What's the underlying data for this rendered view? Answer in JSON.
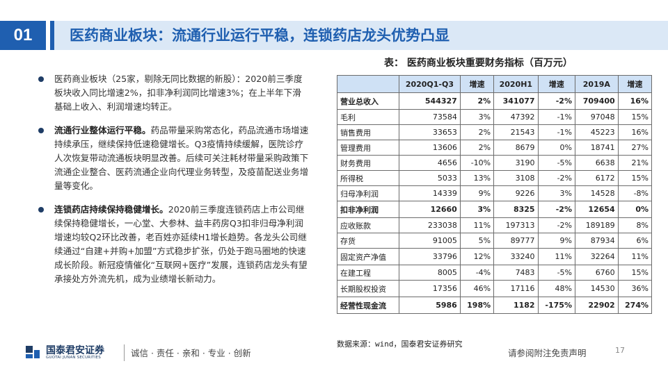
{
  "header": {
    "number": "01",
    "title": "医药商业板块：流通行业运行平稳，连锁药店龙头优势凸显"
  },
  "bullets": [
    {
      "bold": "",
      "text": "医药商业板块（25家，剔除无同比数据的新股）：2020前三季度板块收入同比增速2%，扣非净利润同比增速3%；在上半年下滑基础上收入、利润增速均转正。"
    },
    {
      "bold": "流通行业整体运行平稳。",
      "text": "药品带量采购常态化，药品流通市场增速持续承压，继续保持低速稳健增长。Q3疫情持续缓解，医院诊疗人次恢复带动流通板块明显改善。后续可关注耗材带量采购政策下流通企业整合、医药流通企业向代理业务转型，及疫苗配送业务增量等变化。"
    },
    {
      "bold": "连锁药店持续保持稳健增长。",
      "text": "2020前三季度连锁药店上市公司继续保持稳健增长，一心堂、大参林、益丰药房Q3扣非归母净利润增速均较Q2环比改善，老百姓亦延续H1增长趋势。各龙头公司继续通过“自建+并购+加盟”方式稳步扩张，仍处于跑马圈地的快速成长阶段。新冠疫情催化“互联网+医疗”发展，连锁药店龙头有望承接处方外流先机，成为业绩增长新动力。"
    }
  ],
  "table": {
    "title": "表：  医药商业板块重要财务指标（百万元）",
    "headers": [
      "",
      "2020Q1-Q3",
      "增速",
      "2020H1",
      "增速",
      "2019A",
      "增速"
    ],
    "rows": [
      {
        "label": "营业总收入",
        "bold": true,
        "cells": [
          "544327",
          "2%",
          "341077",
          "-2%",
          "709400",
          "16%"
        ]
      },
      {
        "label": "毛利",
        "bold": false,
        "cells": [
          "73584",
          "3%",
          "47392",
          "-1%",
          "97048",
          "15%"
        ]
      },
      {
        "label": "销售费用",
        "bold": false,
        "cells": [
          "33653",
          "2%",
          "21543",
          "-1%",
          "45223",
          "16%"
        ]
      },
      {
        "label": "管理费用",
        "bold": false,
        "cells": [
          "13606",
          "2%",
          "8679",
          "0%",
          "18741",
          "27%"
        ]
      },
      {
        "label": "财务费用",
        "bold": false,
        "cells": [
          "4656",
          "-10%",
          "3190",
          "-5%",
          "6638",
          "21%"
        ]
      },
      {
        "label": "所得税",
        "bold": false,
        "cells": [
          "5033",
          "13%",
          "3108",
          "-2%",
          "6172",
          "15%"
        ]
      },
      {
        "label": "归母净利润",
        "bold": false,
        "cells": [
          "14339",
          "9%",
          "9226",
          "3%",
          "14528",
          "-8%"
        ]
      },
      {
        "label": "扣非净利润",
        "bold": true,
        "cells": [
          "12660",
          "3%",
          "8325",
          "-2%",
          "12654",
          "0%"
        ]
      },
      {
        "label": "应收账款",
        "bold": false,
        "cells": [
          "233038",
          "11%",
          "197313",
          "-2%",
          "189189",
          "8%"
        ]
      },
      {
        "label": "存货",
        "bold": false,
        "cells": [
          "91005",
          "5%",
          "89777",
          "9%",
          "87934",
          "6%"
        ]
      },
      {
        "label": "固定资产净值",
        "bold": false,
        "cells": [
          "33796",
          "12%",
          "33240",
          "11%",
          "32264",
          "11%"
        ]
      },
      {
        "label": "在建工程",
        "bold": false,
        "cells": [
          "8005",
          "-4%",
          "7483",
          "-5%",
          "6760",
          "15%"
        ]
      },
      {
        "label": "长期股权投资",
        "bold": false,
        "cells": [
          "17356",
          "46%",
          "17116",
          "48%",
          "14530",
          "36%"
        ]
      },
      {
        "label": "经营性现金流",
        "bold": true,
        "cells": [
          "5986",
          "198%",
          "1182",
          "-175%",
          "22902",
          "274%"
        ]
      }
    ],
    "source": "数据来源：wind，国泰君安证券研究"
  },
  "footer": {
    "logo_cn": "国泰君安证券",
    "logo_en": "GUOTAI JUNAN SECURITIES",
    "slogan": "诚信 · 责任 · 亲和 · 专业 · 创新",
    "disclaimer": "请参阅附注免责声明",
    "page": "17"
  },
  "colors": {
    "brand_blue": "#1f5fb0",
    "title_bg": "#dbe8f6",
    "header_cell": "#cfe1f5"
  }
}
